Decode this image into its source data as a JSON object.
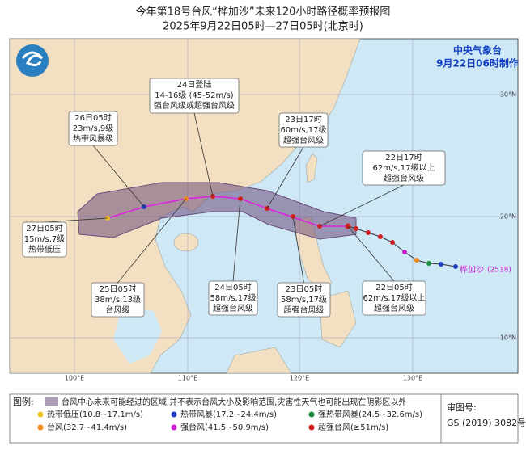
{
  "header": {
    "title": "今年第18号台风“桦加沙”未来120小时路径概率预报图",
    "subtitle": "2025年9月22日05时—27日05时(北京时)"
  },
  "issuer": {
    "agency": "中央气象台",
    "issued": "9月22日06时制作"
  },
  "annotations": [
    {
      "lines": [
        "24日登陆",
        "14-16级 (45-52m/s)",
        "强台风级或超强台风级"
      ]
    },
    {
      "lines": [
        "26日05时",
        "23m/s,9级",
        "热带风暴级"
      ]
    },
    {
      "lines": [
        "23日17时",
        "60m/s,17级",
        "超强台风级"
      ]
    },
    {
      "lines": [
        "22日17时",
        "62m/s,17级以上",
        "超强台风级"
      ]
    },
    {
      "lines": [
        "27日05时",
        "15m/s,7级",
        "热带低压"
      ]
    },
    {
      "lines": [
        "25日05时",
        "38m/s,13级",
        "台风级"
      ]
    },
    {
      "lines": [
        "24日05时",
        "58m/s,17级",
        "超强台风级"
      ]
    },
    {
      "lines": [
        "23日05时",
        "58m/s,17级",
        "超强台风级"
      ]
    },
    {
      "lines": [
        "22日05时",
        "62m/s,17级以上",
        "超强台风级"
      ]
    }
  ],
  "storm": {
    "name": "桦加沙",
    "id": "(2518)"
  },
  "grid": {
    "lon_labels": [
      "100°E",
      "110°E",
      "120°E",
      "130°E"
    ],
    "lat_labels": [
      "30°N",
      "20°N",
      "10°N"
    ]
  },
  "legend": {
    "heading": "图例:",
    "cone_note": "台风中心未来可能经过的区域,并不表示台风大小及影响范围,灾害性天气也可能出现在阴影区以外",
    "items": [
      "热带低压(10.8~17.1m/s)",
      "热带风暴(17.2~24.4m/s)",
      "强热带风暴(24.5~32.6m/s)",
      "台风(32.7~41.4m/s)",
      "强台风(41.5~50.9m/s)",
      "超强台风(≥51m/s)"
    ]
  },
  "approval": {
    "label": "审图号:",
    "number": "GS (2019) 3082号"
  }
}
